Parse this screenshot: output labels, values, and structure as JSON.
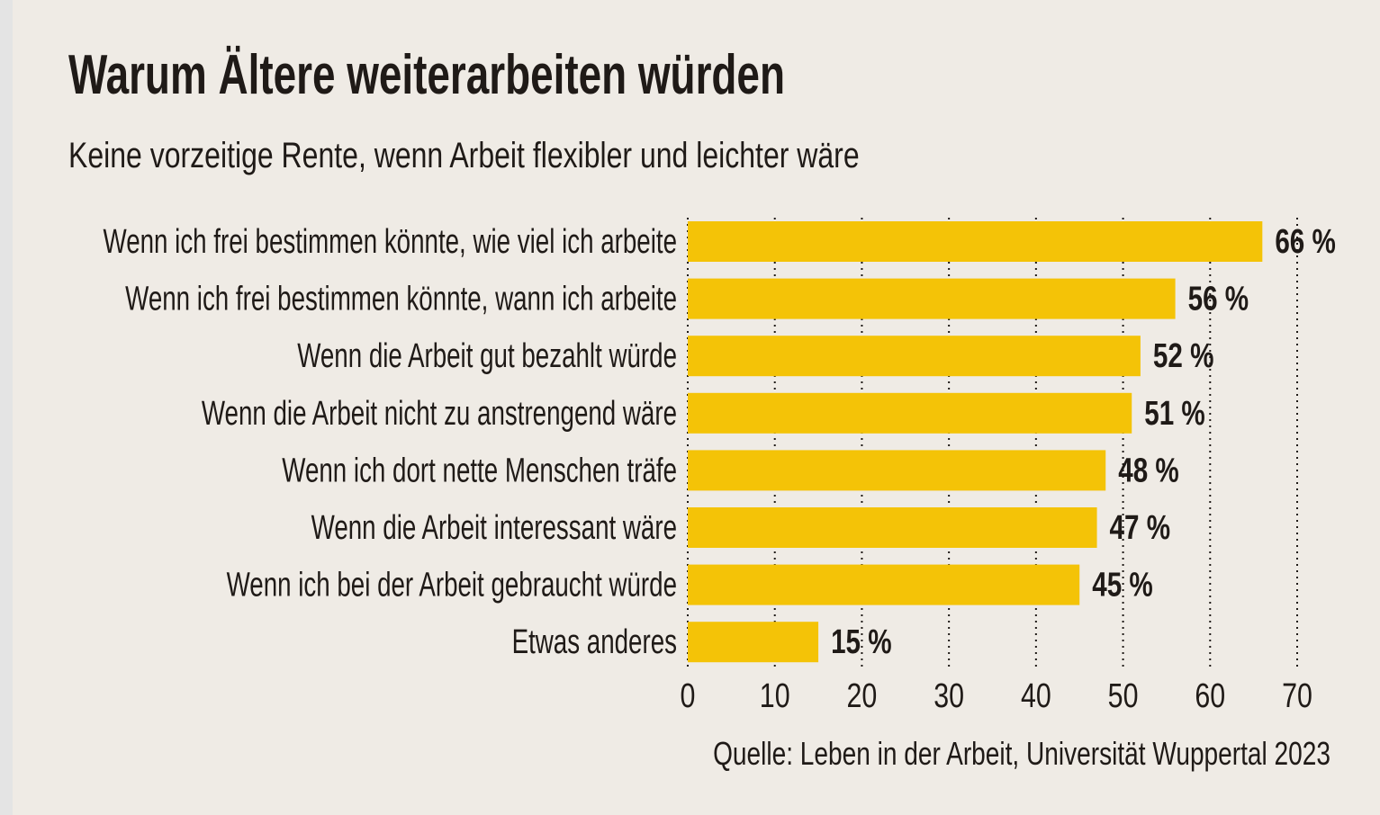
{
  "chart_data": {
    "type": "bar",
    "orientation": "horizontal",
    "title": "Warum Ältere weiterarbeiten würden",
    "subtitle": "Keine vorzeitige Rente, wenn Arbeit flexibler und leichter wäre",
    "categories": [
      "Wenn ich frei bestimmen könnte, wie viel ich arbeite",
      "Wenn ich frei bestimmen könnte, wann ich arbeite",
      "Wenn die Arbeit gut bezahlt würde",
      "Wenn die Arbeit nicht zu anstrengend wäre",
      "Wenn ich dort nette Menschen träfe",
      "Wenn die Arbeit interessant wäre",
      "Wenn ich bei der Arbeit gebraucht würde",
      "Etwas anderes"
    ],
    "values": [
      66,
      56,
      52,
      51,
      48,
      47,
      45,
      15
    ],
    "value_labels": [
      "66 %",
      "56 %",
      "52 %",
      "51 %",
      "48 %",
      "47 %",
      "45 %",
      "15 %"
    ],
    "xlim": [
      0,
      70
    ],
    "xticks": [
      "0",
      "10",
      "20",
      "30",
      "40",
      "50",
      "60",
      "70"
    ],
    "grid": "vertical dotted",
    "bar_color": "#f4c307",
    "source": "Quelle: Leben in der Arbeit, Universität Wuppertal 2023"
  }
}
